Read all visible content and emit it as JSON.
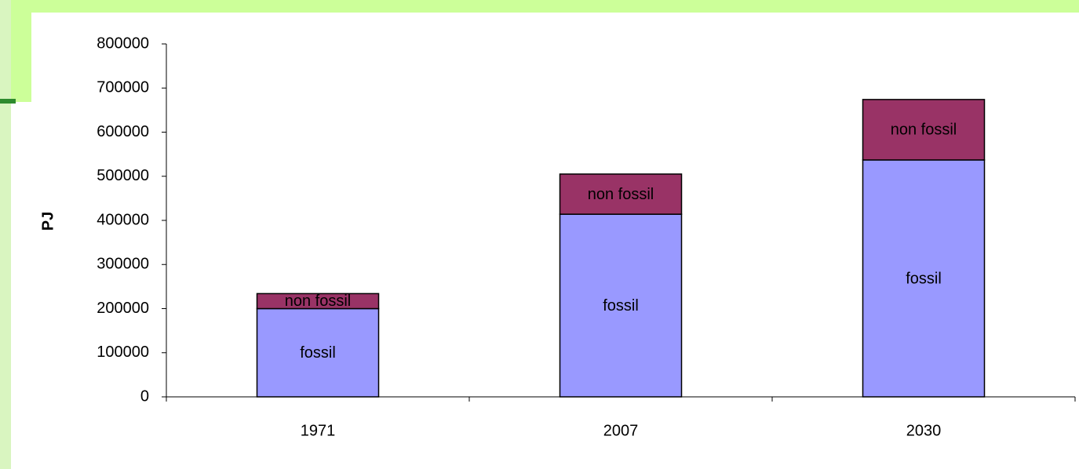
{
  "chart_data": {
    "type": "stacked_bar",
    "categories": [
      "1971",
      "2007",
      "2030"
    ],
    "series": [
      {
        "name": "fossil",
        "color": "#9999ff",
        "values": [
          200000,
          414000,
          537000
        ]
      },
      {
        "name": "non fossil",
        "color": "#993366",
        "values": [
          34000,
          91000,
          137000
        ]
      }
    ],
    "y_label": "PJ",
    "ylim": [
      0,
      800000
    ],
    "yticks": [
      0,
      100000,
      200000,
      300000,
      400000,
      500000,
      600000,
      700000,
      800000
    ],
    "grid": false
  }
}
